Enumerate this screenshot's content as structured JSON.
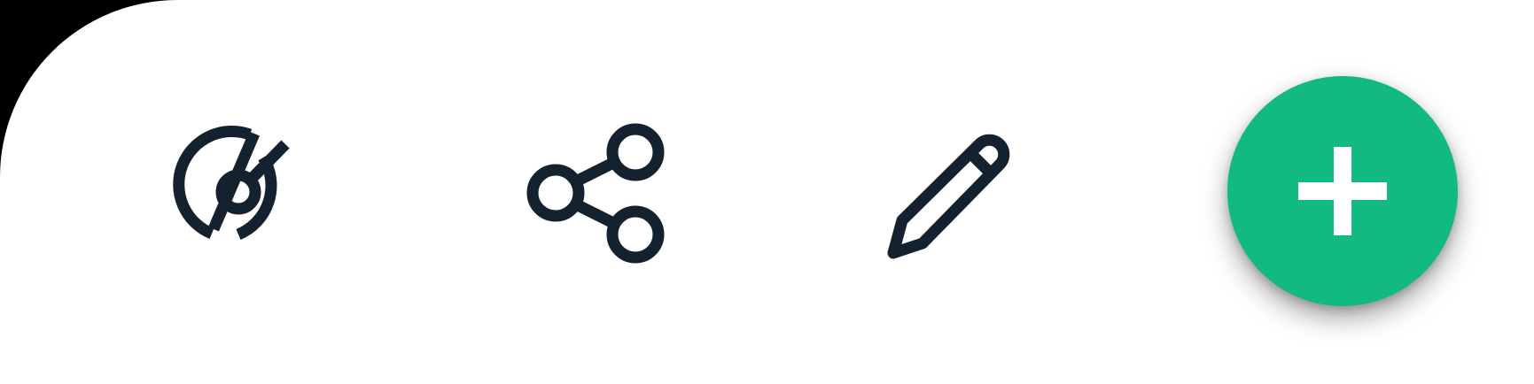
{
  "toolbar": {
    "background_color": "#ffffff",
    "icon_color": "#14222f",
    "items": [
      {
        "icon": "signal-off-icon"
      },
      {
        "icon": "share-icon"
      },
      {
        "icon": "pencil-icon"
      }
    ],
    "fab": {
      "icon": "plus-icon",
      "background_color": "#12b981",
      "icon_color": "#ffffff"
    }
  }
}
